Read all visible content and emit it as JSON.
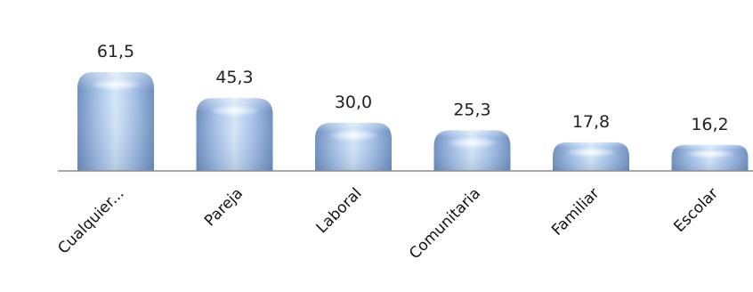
{
  "chart_data": {
    "type": "bar",
    "categories": [
      "Cualquier...",
      "Pareja",
      "Laboral",
      "Comunitaria",
      "Familiar",
      "Escolar"
    ],
    "values": [
      61.5,
      45.3,
      30.0,
      25.3,
      17.8,
      16.2
    ],
    "value_labels": [
      "61,5",
      "45,3",
      "30,0",
      "25,3",
      "17,8",
      "16,2"
    ],
    "title": "",
    "xlabel": "",
    "ylabel": "",
    "ylim": [
      0,
      70
    ],
    "grid": false,
    "legend": "none",
    "colors": {
      "bar_light": "#cfe0f4",
      "bar_mid": "#9cbbe3",
      "bar_dark": "#6f8fbf",
      "axis": "#8c8c8c"
    }
  }
}
